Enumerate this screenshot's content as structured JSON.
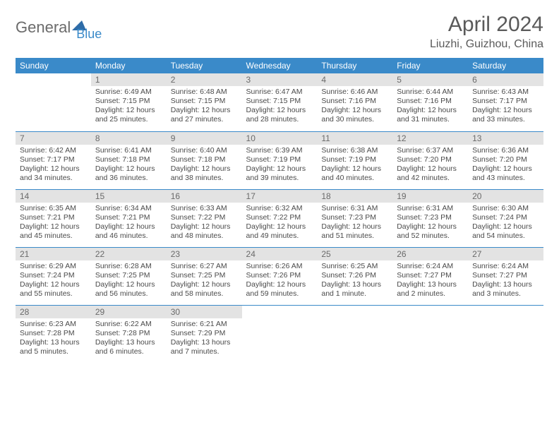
{
  "logo": {
    "part1": "General",
    "part2": "Blue"
  },
  "header": {
    "title": "April 2024",
    "location": "Liuzhi, Guizhou, China"
  },
  "colors": {
    "accent": "#3a8ac9",
    "daybg": "#e3e3e3",
    "text": "#5a5a5a"
  },
  "weekdays": [
    "Sunday",
    "Monday",
    "Tuesday",
    "Wednesday",
    "Thursday",
    "Friday",
    "Saturday"
  ],
  "weeks": [
    [
      null,
      {
        "n": "1",
        "sr": "6:49 AM",
        "ss": "7:15 PM",
        "dl": "12 hours and 25 minutes."
      },
      {
        "n": "2",
        "sr": "6:48 AM",
        "ss": "7:15 PM",
        "dl": "12 hours and 27 minutes."
      },
      {
        "n": "3",
        "sr": "6:47 AM",
        "ss": "7:15 PM",
        "dl": "12 hours and 28 minutes."
      },
      {
        "n": "4",
        "sr": "6:46 AM",
        "ss": "7:16 PM",
        "dl": "12 hours and 30 minutes."
      },
      {
        "n": "5",
        "sr": "6:44 AM",
        "ss": "7:16 PM",
        "dl": "12 hours and 31 minutes."
      },
      {
        "n": "6",
        "sr": "6:43 AM",
        "ss": "7:17 PM",
        "dl": "12 hours and 33 minutes."
      }
    ],
    [
      {
        "n": "7",
        "sr": "6:42 AM",
        "ss": "7:17 PM",
        "dl": "12 hours and 34 minutes."
      },
      {
        "n": "8",
        "sr": "6:41 AM",
        "ss": "7:18 PM",
        "dl": "12 hours and 36 minutes."
      },
      {
        "n": "9",
        "sr": "6:40 AM",
        "ss": "7:18 PM",
        "dl": "12 hours and 38 minutes."
      },
      {
        "n": "10",
        "sr": "6:39 AM",
        "ss": "7:19 PM",
        "dl": "12 hours and 39 minutes."
      },
      {
        "n": "11",
        "sr": "6:38 AM",
        "ss": "7:19 PM",
        "dl": "12 hours and 40 minutes."
      },
      {
        "n": "12",
        "sr": "6:37 AM",
        "ss": "7:20 PM",
        "dl": "12 hours and 42 minutes."
      },
      {
        "n": "13",
        "sr": "6:36 AM",
        "ss": "7:20 PM",
        "dl": "12 hours and 43 minutes."
      }
    ],
    [
      {
        "n": "14",
        "sr": "6:35 AM",
        "ss": "7:21 PM",
        "dl": "12 hours and 45 minutes."
      },
      {
        "n": "15",
        "sr": "6:34 AM",
        "ss": "7:21 PM",
        "dl": "12 hours and 46 minutes."
      },
      {
        "n": "16",
        "sr": "6:33 AM",
        "ss": "7:22 PM",
        "dl": "12 hours and 48 minutes."
      },
      {
        "n": "17",
        "sr": "6:32 AM",
        "ss": "7:22 PM",
        "dl": "12 hours and 49 minutes."
      },
      {
        "n": "18",
        "sr": "6:31 AM",
        "ss": "7:23 PM",
        "dl": "12 hours and 51 minutes."
      },
      {
        "n": "19",
        "sr": "6:31 AM",
        "ss": "7:23 PM",
        "dl": "12 hours and 52 minutes."
      },
      {
        "n": "20",
        "sr": "6:30 AM",
        "ss": "7:24 PM",
        "dl": "12 hours and 54 minutes."
      }
    ],
    [
      {
        "n": "21",
        "sr": "6:29 AM",
        "ss": "7:24 PM",
        "dl": "12 hours and 55 minutes."
      },
      {
        "n": "22",
        "sr": "6:28 AM",
        "ss": "7:25 PM",
        "dl": "12 hours and 56 minutes."
      },
      {
        "n": "23",
        "sr": "6:27 AM",
        "ss": "7:25 PM",
        "dl": "12 hours and 58 minutes."
      },
      {
        "n": "24",
        "sr": "6:26 AM",
        "ss": "7:26 PM",
        "dl": "12 hours and 59 minutes."
      },
      {
        "n": "25",
        "sr": "6:25 AM",
        "ss": "7:26 PM",
        "dl": "13 hours and 1 minute."
      },
      {
        "n": "26",
        "sr": "6:24 AM",
        "ss": "7:27 PM",
        "dl": "13 hours and 2 minutes."
      },
      {
        "n": "27",
        "sr": "6:24 AM",
        "ss": "7:27 PM",
        "dl": "13 hours and 3 minutes."
      }
    ],
    [
      {
        "n": "28",
        "sr": "6:23 AM",
        "ss": "7:28 PM",
        "dl": "13 hours and 5 minutes."
      },
      {
        "n": "29",
        "sr": "6:22 AM",
        "ss": "7:28 PM",
        "dl": "13 hours and 6 minutes."
      },
      {
        "n": "30",
        "sr": "6:21 AM",
        "ss": "7:29 PM",
        "dl": "13 hours and 7 minutes."
      },
      null,
      null,
      null,
      null
    ]
  ],
  "labels": {
    "sunrise": "Sunrise:",
    "sunset": "Sunset:",
    "daylight": "Daylight:"
  }
}
